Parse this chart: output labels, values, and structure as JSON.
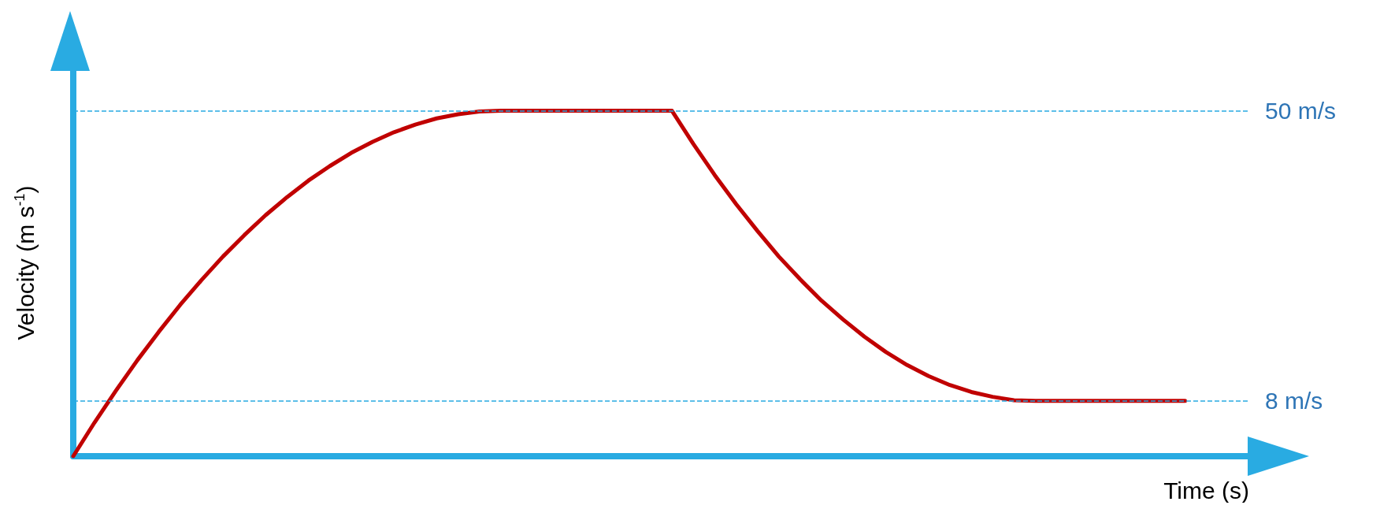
{
  "chart_data": {
    "type": "line",
    "xlabel": "Time (s)",
    "ylabel": "Velocity (m s$^{-1}$)",
    "categories": [
      null,
      null,
      null,
      null,
      null,
      null,
      null,
      null,
      null,
      null,
      null,
      null,
      null,
      null,
      null,
      null,
      null,
      null,
      null,
      null,
      null,
      null,
      null,
      null,
      null,
      null,
      null,
      null,
      null,
      null,
      null,
      null,
      null,
      null,
      null,
      null,
      null,
      null,
      null,
      null,
      null,
      null,
      null,
      null,
      null,
      null,
      null,
      null,
      null,
      null,
      null,
      null,
      null,
      null,
      null,
      null
    ],
    "series": [
      {
        "color": "#c00000",
        "values": [
          0,
          4.9,
          9.5,
          13.9,
          18,
          21.9,
          25.5,
          28.9,
          32,
          34.9,
          37.5,
          39.9,
          42,
          43.9,
          45.5,
          46.9,
          48,
          48.9,
          49.5,
          49.9,
          50,
          50,
          50,
          50,
          50,
          50,
          50,
          50,
          50,
          45.2,
          40.7,
          36.5,
          32.6,
          28.9,
          25.6,
          22.5,
          19.8,
          17.3,
          15.1,
          13.2,
          11.6,
          10.3,
          9.3,
          8.6,
          8.1,
          8,
          8,
          8,
          8,
          8,
          8,
          8,
          8,
          null,
          null,
          null
        ]
      }
    ],
    "ylim": [
      0,
      56
    ],
    "tick_labels": false,
    "grid": false,
    "marker": "none",
    "line_style": "solid",
    "ref_lines": [
      {
        "axis": "y",
        "value": 50,
        "label": "50 m/s",
        "color": "#29abe2",
        "line_style": "dashed"
      },
      {
        "axis": "y",
        "value": 8,
        "label": "8 m/s",
        "color": "#29abe2",
        "line_style": "dashed"
      }
    ]
  }
}
